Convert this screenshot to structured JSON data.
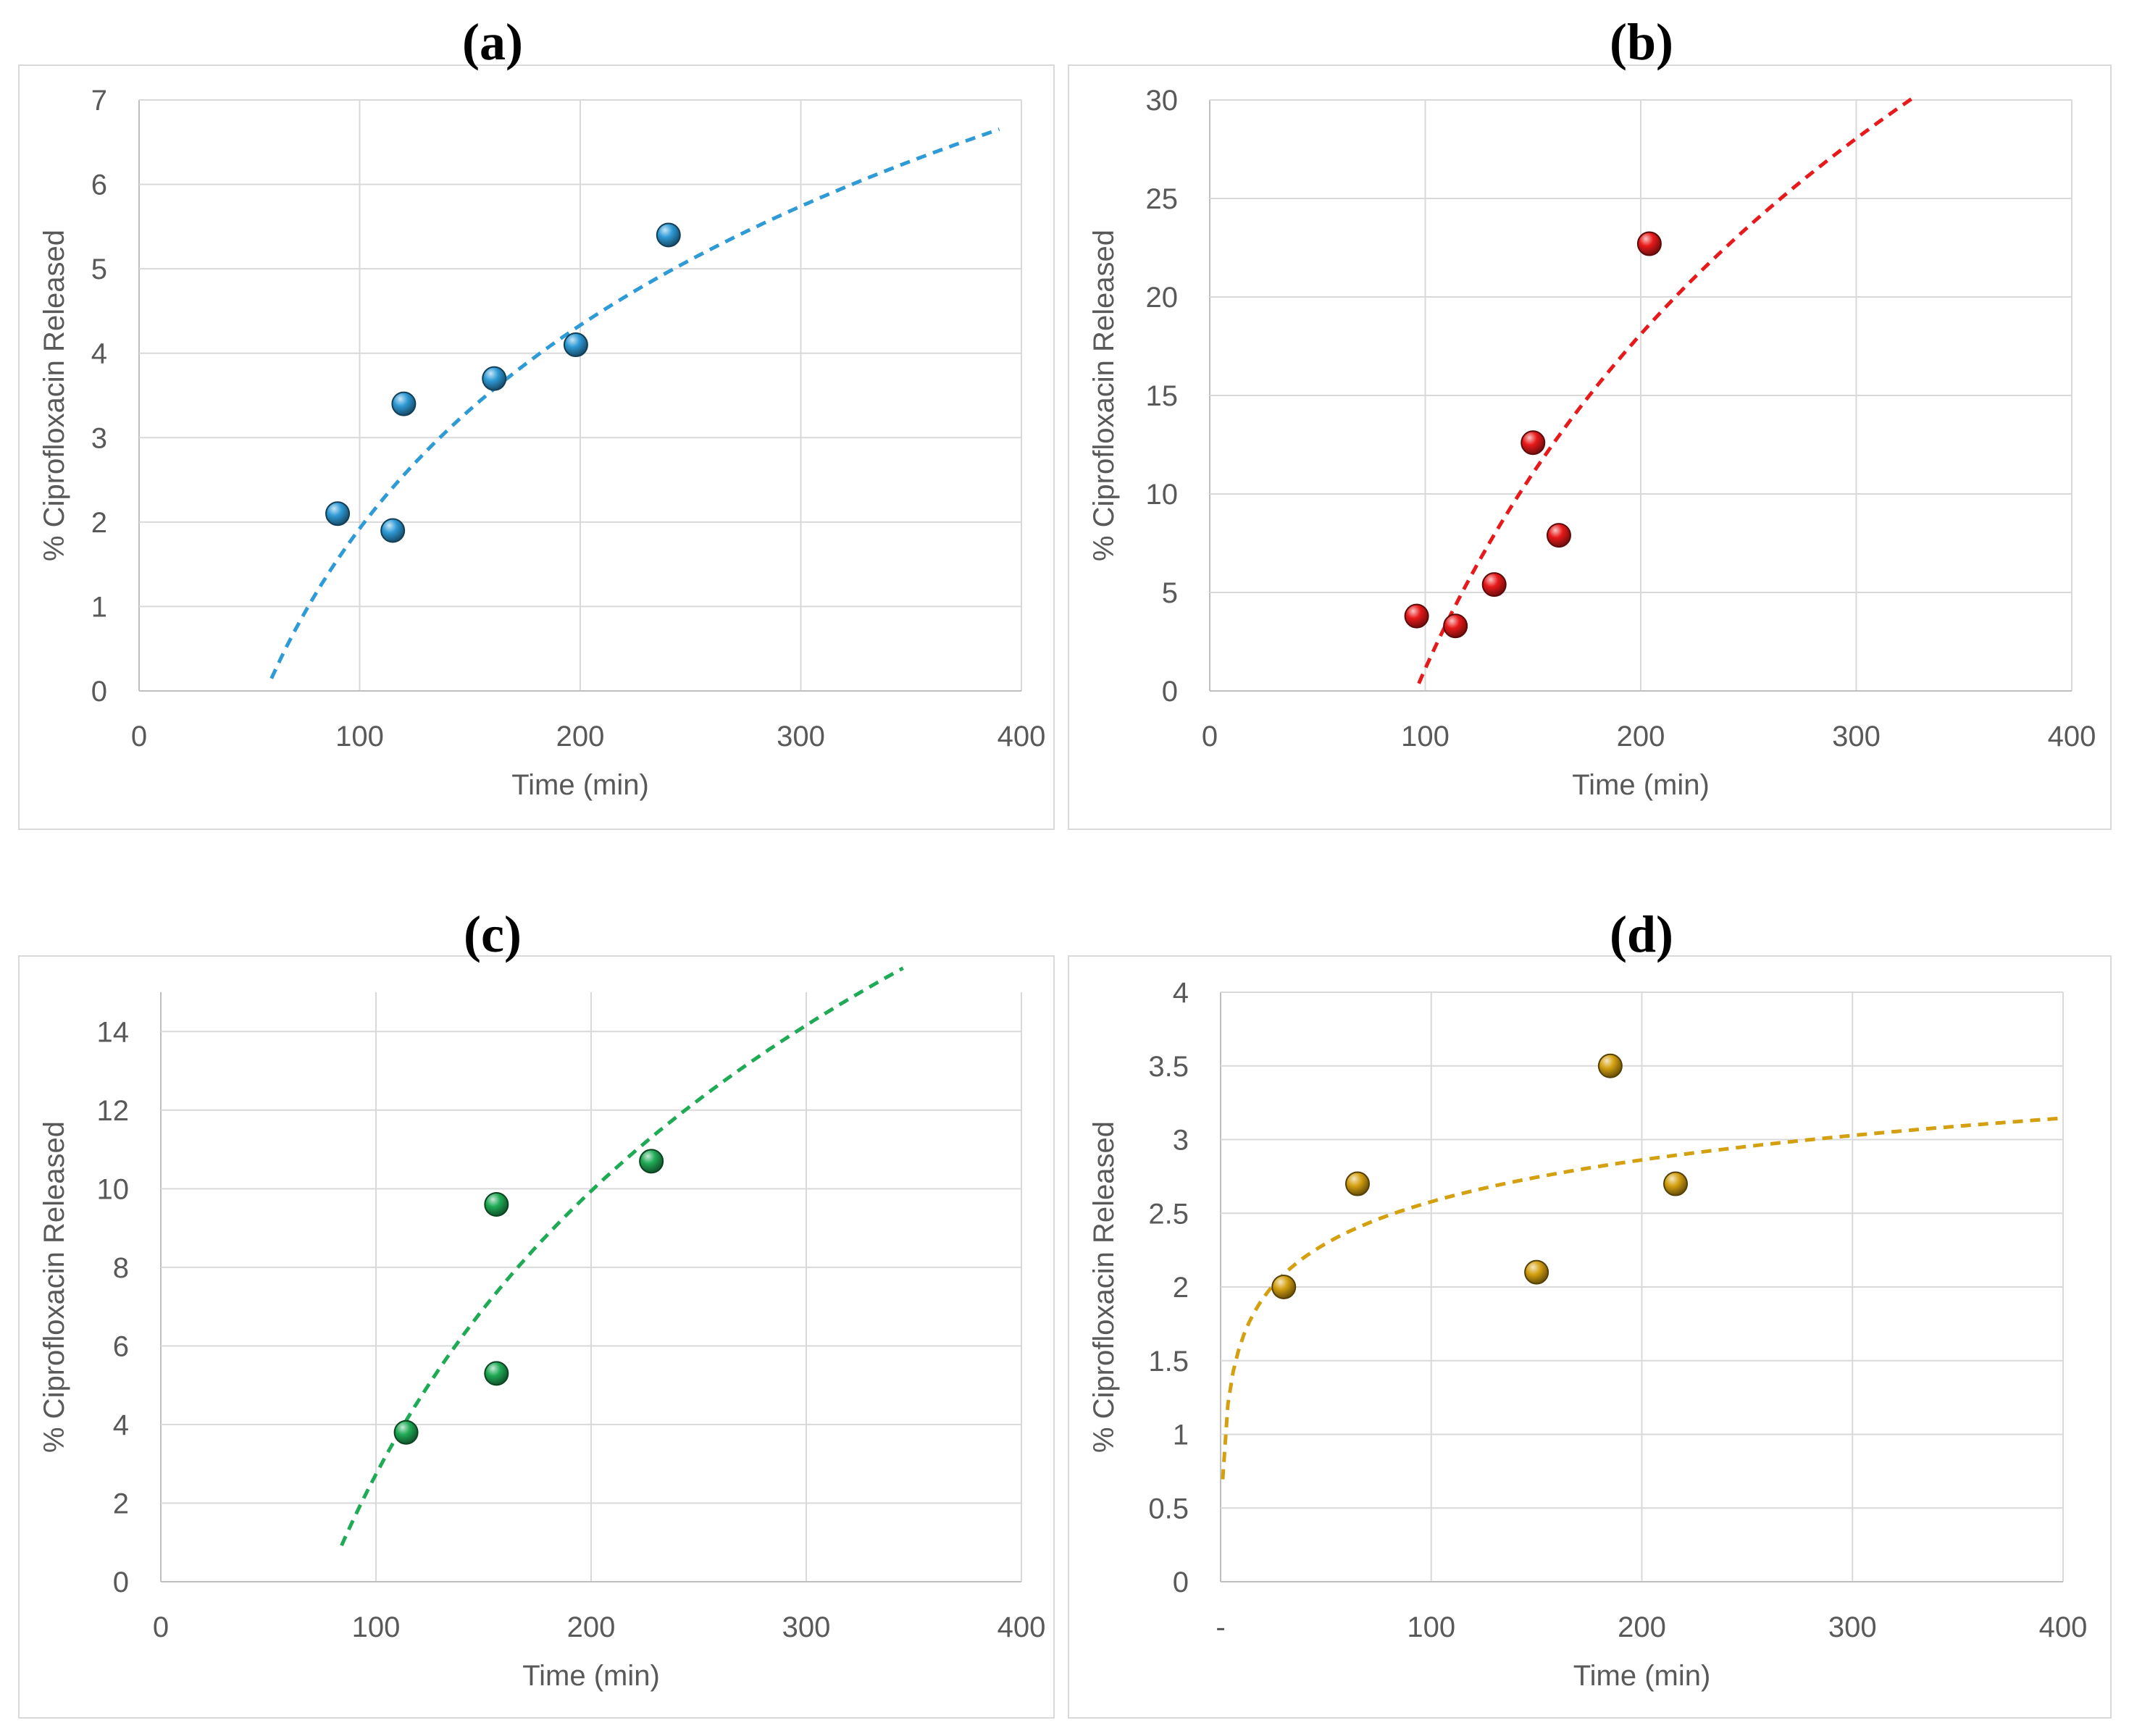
{
  "chart_data": [
    {
      "id": "a",
      "panel_label": "(a)",
      "type": "scatter",
      "xlabel": "Time (min)",
      "ylabel": "% Ciprofloxacin Released",
      "xlim": [
        0,
        400
      ],
      "ylim": [
        0,
        7
      ],
      "xticks": [
        "0",
        "100",
        "200",
        "300",
        "400"
      ],
      "yticks": [
        "0",
        "1",
        "2",
        "3",
        "4",
        "5",
        "6",
        "7"
      ],
      "grid": true,
      "color": "#2E9AD6",
      "points": [
        {
          "x": 90,
          "y": 2.1
        },
        {
          "x": 115,
          "y": 1.9
        },
        {
          "x": 120,
          "y": 3.4
        },
        {
          "x": 161,
          "y": 3.7
        },
        {
          "x": 198,
          "y": 4.1
        },
        {
          "x": 240,
          "y": 5.4
        }
      ],
      "trendline": {
        "type": "logarithmic",
        "a": 3.475,
        "b": -14.08,
        "x_from": 60,
        "x_to": 390
      }
    },
    {
      "id": "b",
      "panel_label": "(b)",
      "type": "scatter",
      "xlabel": "Time (min)",
      "ylabel": "% Ciprofloxacin Released",
      "xlim": [
        0,
        400
      ],
      "ylim": [
        0,
        30
      ],
      "xticks": [
        "0",
        "100",
        "200",
        "300",
        "400"
      ],
      "yticks": [
        "0",
        "5",
        "10",
        "15",
        "20",
        "25",
        "30"
      ],
      "grid": true,
      "color": "#E8191A",
      "points": [
        {
          "x": 96,
          "y": 3.8
        },
        {
          "x": 114,
          "y": 3.3
        },
        {
          "x": 132,
          "y": 5.4
        },
        {
          "x": 150,
          "y": 12.6
        },
        {
          "x": 162,
          "y": 7.9
        },
        {
          "x": 204,
          "y": 22.7
        }
      ],
      "trendline": {
        "type": "logarithmic",
        "a": 24.5,
        "b": -111.7,
        "x_from": 97,
        "x_to": 327
      }
    },
    {
      "id": "c",
      "panel_label": "(c)",
      "type": "scatter",
      "xlabel": "Time (min)",
      "ylabel": "% Ciprofloxacin Released",
      "xlim": [
        0,
        400
      ],
      "ylim": [
        0,
        15
      ],
      "xticks": [
        "0",
        "100",
        "200",
        "300",
        "400"
      ],
      "yticks": [
        "0",
        "2",
        "4",
        "6",
        "8",
        "10",
        "12",
        "14"
      ],
      "grid": true,
      "color": "#1FAA55",
      "points": [
        {
          "x": 114,
          "y": 3.8
        },
        {
          "x": 156,
          "y": 9.6
        },
        {
          "x": 156,
          "y": 5.3
        },
        {
          "x": 228,
          "y": 10.7
        }
      ],
      "trendline": {
        "type": "logarithmic",
        "a": 10.4,
        "b": -45.16,
        "x_from": 84,
        "x_to": 345
      }
    },
    {
      "id": "d",
      "panel_label": "(d)",
      "type": "scatter",
      "xlabel": "Time (min)",
      "ylabel": "% Ciprofloxacin Released",
      "xlim": [
        0,
        400
      ],
      "ylim": [
        0,
        4
      ],
      "xticks": [
        "-",
        "100",
        "200",
        "300",
        "400"
      ],
      "yticks": [
        "0",
        "0.5",
        "1",
        "1.5",
        "2",
        "2.5",
        "3",
        "3.5",
        "4"
      ],
      "grid": true,
      "color": "#D4A010",
      "points": [
        {
          "x": 30,
          "y": 2.0
        },
        {
          "x": 65,
          "y": 2.7
        },
        {
          "x": 150,
          "y": 2.1
        },
        {
          "x": 185,
          "y": 3.5
        },
        {
          "x": 216,
          "y": 2.7
        }
      ],
      "trendline": {
        "type": "logarithmic",
        "a": 0.409,
        "b": 0.695,
        "x_from": 1,
        "x_to": 398
      }
    }
  ]
}
